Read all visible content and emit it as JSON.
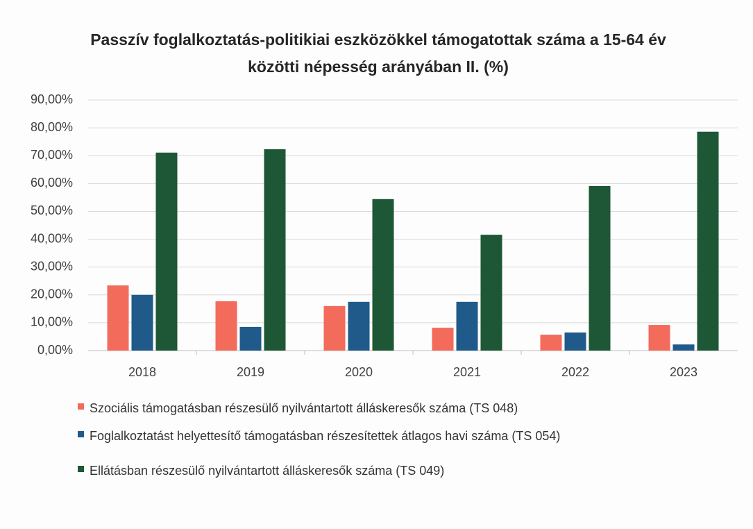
{
  "chart_data": {
    "type": "bar",
    "title": "Passzív foglalkoztatás-politikiai eszközökkel támogatottak száma a 15-64 év közötti népesség  arányában II. (%)",
    "categories": [
      "2018",
      "2019",
      "2020",
      "2021",
      "2022",
      "2023"
    ],
    "series": [
      {
        "name": "Szociális támogatásban részesülő nyilvántartott álláskeresők száma (TS 048)",
        "color": "#f26b5b",
        "values": [
          23.4,
          17.7,
          16.0,
          8.2,
          5.7,
          9.2
        ]
      },
      {
        "name": "Foglalkoztatást helyettesítő támogatásban részesítettek átlagos havi száma (TS 054)",
        "color": "#1f5a8a",
        "values": [
          20.0,
          8.5,
          17.5,
          17.5,
          6.5,
          2.2
        ]
      },
      {
        "name": "Ellátásban részesülő nyilvántartott álláskeresők száma (TS 049)",
        "color": "#1d5735",
        "values": [
          71.1,
          72.3,
          54.4,
          41.6,
          59.1,
          78.6
        ]
      }
    ],
    "ylim": [
      0,
      90
    ],
    "yticks": [
      {
        "value": 0,
        "label": "0,00%"
      },
      {
        "value": 10,
        "label": "10,00%"
      },
      {
        "value": 20,
        "label": "20,00%"
      },
      {
        "value": 30,
        "label": "30,00%"
      },
      {
        "value": 40,
        "label": "40,00%"
      },
      {
        "value": 50,
        "label": "50,00%"
      },
      {
        "value": 60,
        "label": "60,00%"
      },
      {
        "value": 70,
        "label": "70,00%"
      },
      {
        "value": 80,
        "label": "80,00%"
      },
      {
        "value": 90,
        "label": "90,00%"
      }
    ],
    "grid": true,
    "legend": "bottom"
  }
}
